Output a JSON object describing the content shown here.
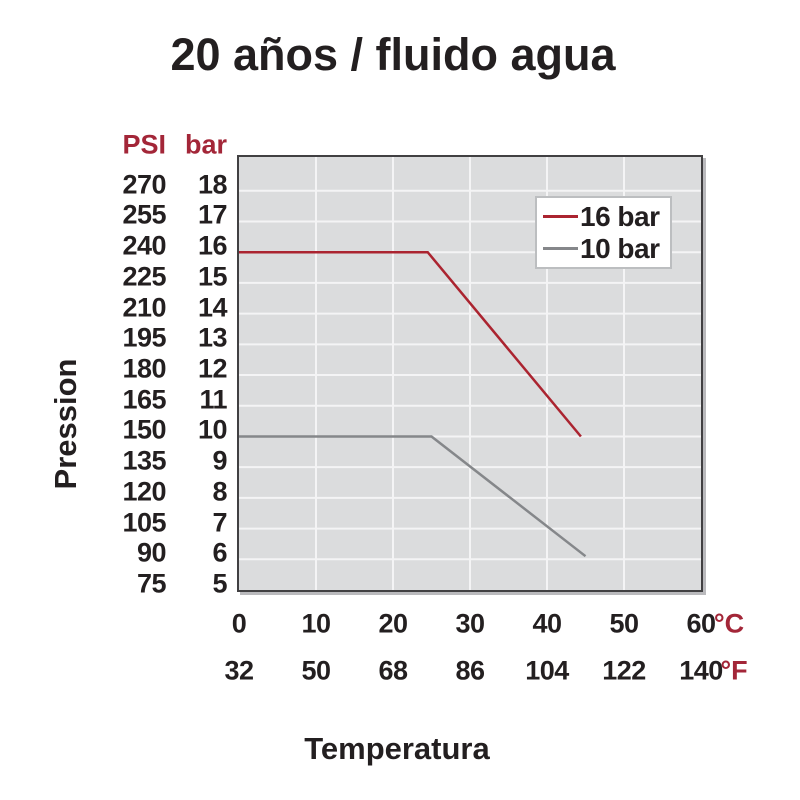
{
  "title": "20 años / fluido agua",
  "colors": {
    "accent_red": "#a32638",
    "text": "#231f20",
    "line_16bar": "#ab2430",
    "line_10bar": "#85878a",
    "plot_background": "#dbdcdd",
    "grid": "#f4f4f5",
    "plot_border": "#414042",
    "legend_border": "#bcbec0"
  },
  "axes": {
    "pressure_label": "Pression",
    "temperature_label": "Temperatura",
    "psi_header": "PSI",
    "bar_header": "bar",
    "celsius_unit": "°C",
    "fahrenheit_unit": "°F"
  },
  "chart_data": {
    "type": "line",
    "title": "20 años / fluido agua",
    "xlabel": "Temperatura",
    "ylabel": "Pression",
    "x_celsius_ticks": [
      0,
      10,
      20,
      30,
      40,
      50,
      60
    ],
    "x_fahrenheit_ticks": [
      32,
      50,
      68,
      86,
      104,
      122,
      140
    ],
    "y_bar_ticks": [
      18,
      17,
      16,
      15,
      14,
      13,
      12,
      11,
      10,
      9,
      8,
      7,
      6,
      5
    ],
    "y_psi_ticks": [
      270,
      255,
      240,
      225,
      210,
      195,
      180,
      165,
      150,
      135,
      120,
      105,
      90,
      75
    ],
    "xlim_celsius": [
      0,
      60
    ],
    "ylim_bar": [
      5,
      19.1
    ],
    "grid": true,
    "legend_position": "top-right",
    "series": [
      {
        "name": "16 bar",
        "color": "#ab2430",
        "points_celsius_bar": [
          [
            0,
            16
          ],
          [
            24.5,
            16
          ],
          [
            44.4,
            10
          ]
        ]
      },
      {
        "name": "10 bar",
        "color": "#85878a",
        "points_celsius_bar": [
          [
            0,
            10
          ],
          [
            25,
            10
          ],
          [
            45,
            6.1
          ]
        ]
      }
    ]
  }
}
